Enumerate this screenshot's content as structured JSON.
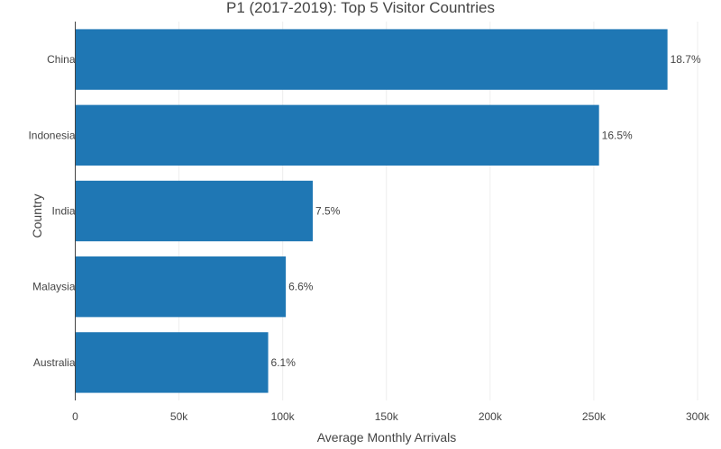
{
  "chart_data": {
    "type": "bar",
    "orientation": "horizontal",
    "title": "P1 (2017-2019): Top 5 Visitor Countries",
    "xlabel": "Average Monthly Arrivals",
    "ylabel": "Country",
    "categories": [
      "China",
      "Indonesia",
      "India",
      "Malaysia",
      "Australia"
    ],
    "values": [
      285500,
      252500,
      114500,
      101500,
      93000
    ],
    "data_labels": [
      "18.7%",
      "16.5%",
      "7.5%",
      "6.6%",
      "6.1%"
    ],
    "xlim": [
      0,
      300000
    ],
    "xticks": [
      0,
      50000,
      100000,
      150000,
      200000,
      250000,
      300000
    ],
    "xtick_labels": [
      "0",
      "50k",
      "100k",
      "150k",
      "200k",
      "250k",
      "300k"
    ],
    "grid": true,
    "bar_color": "#1f77b4"
  }
}
